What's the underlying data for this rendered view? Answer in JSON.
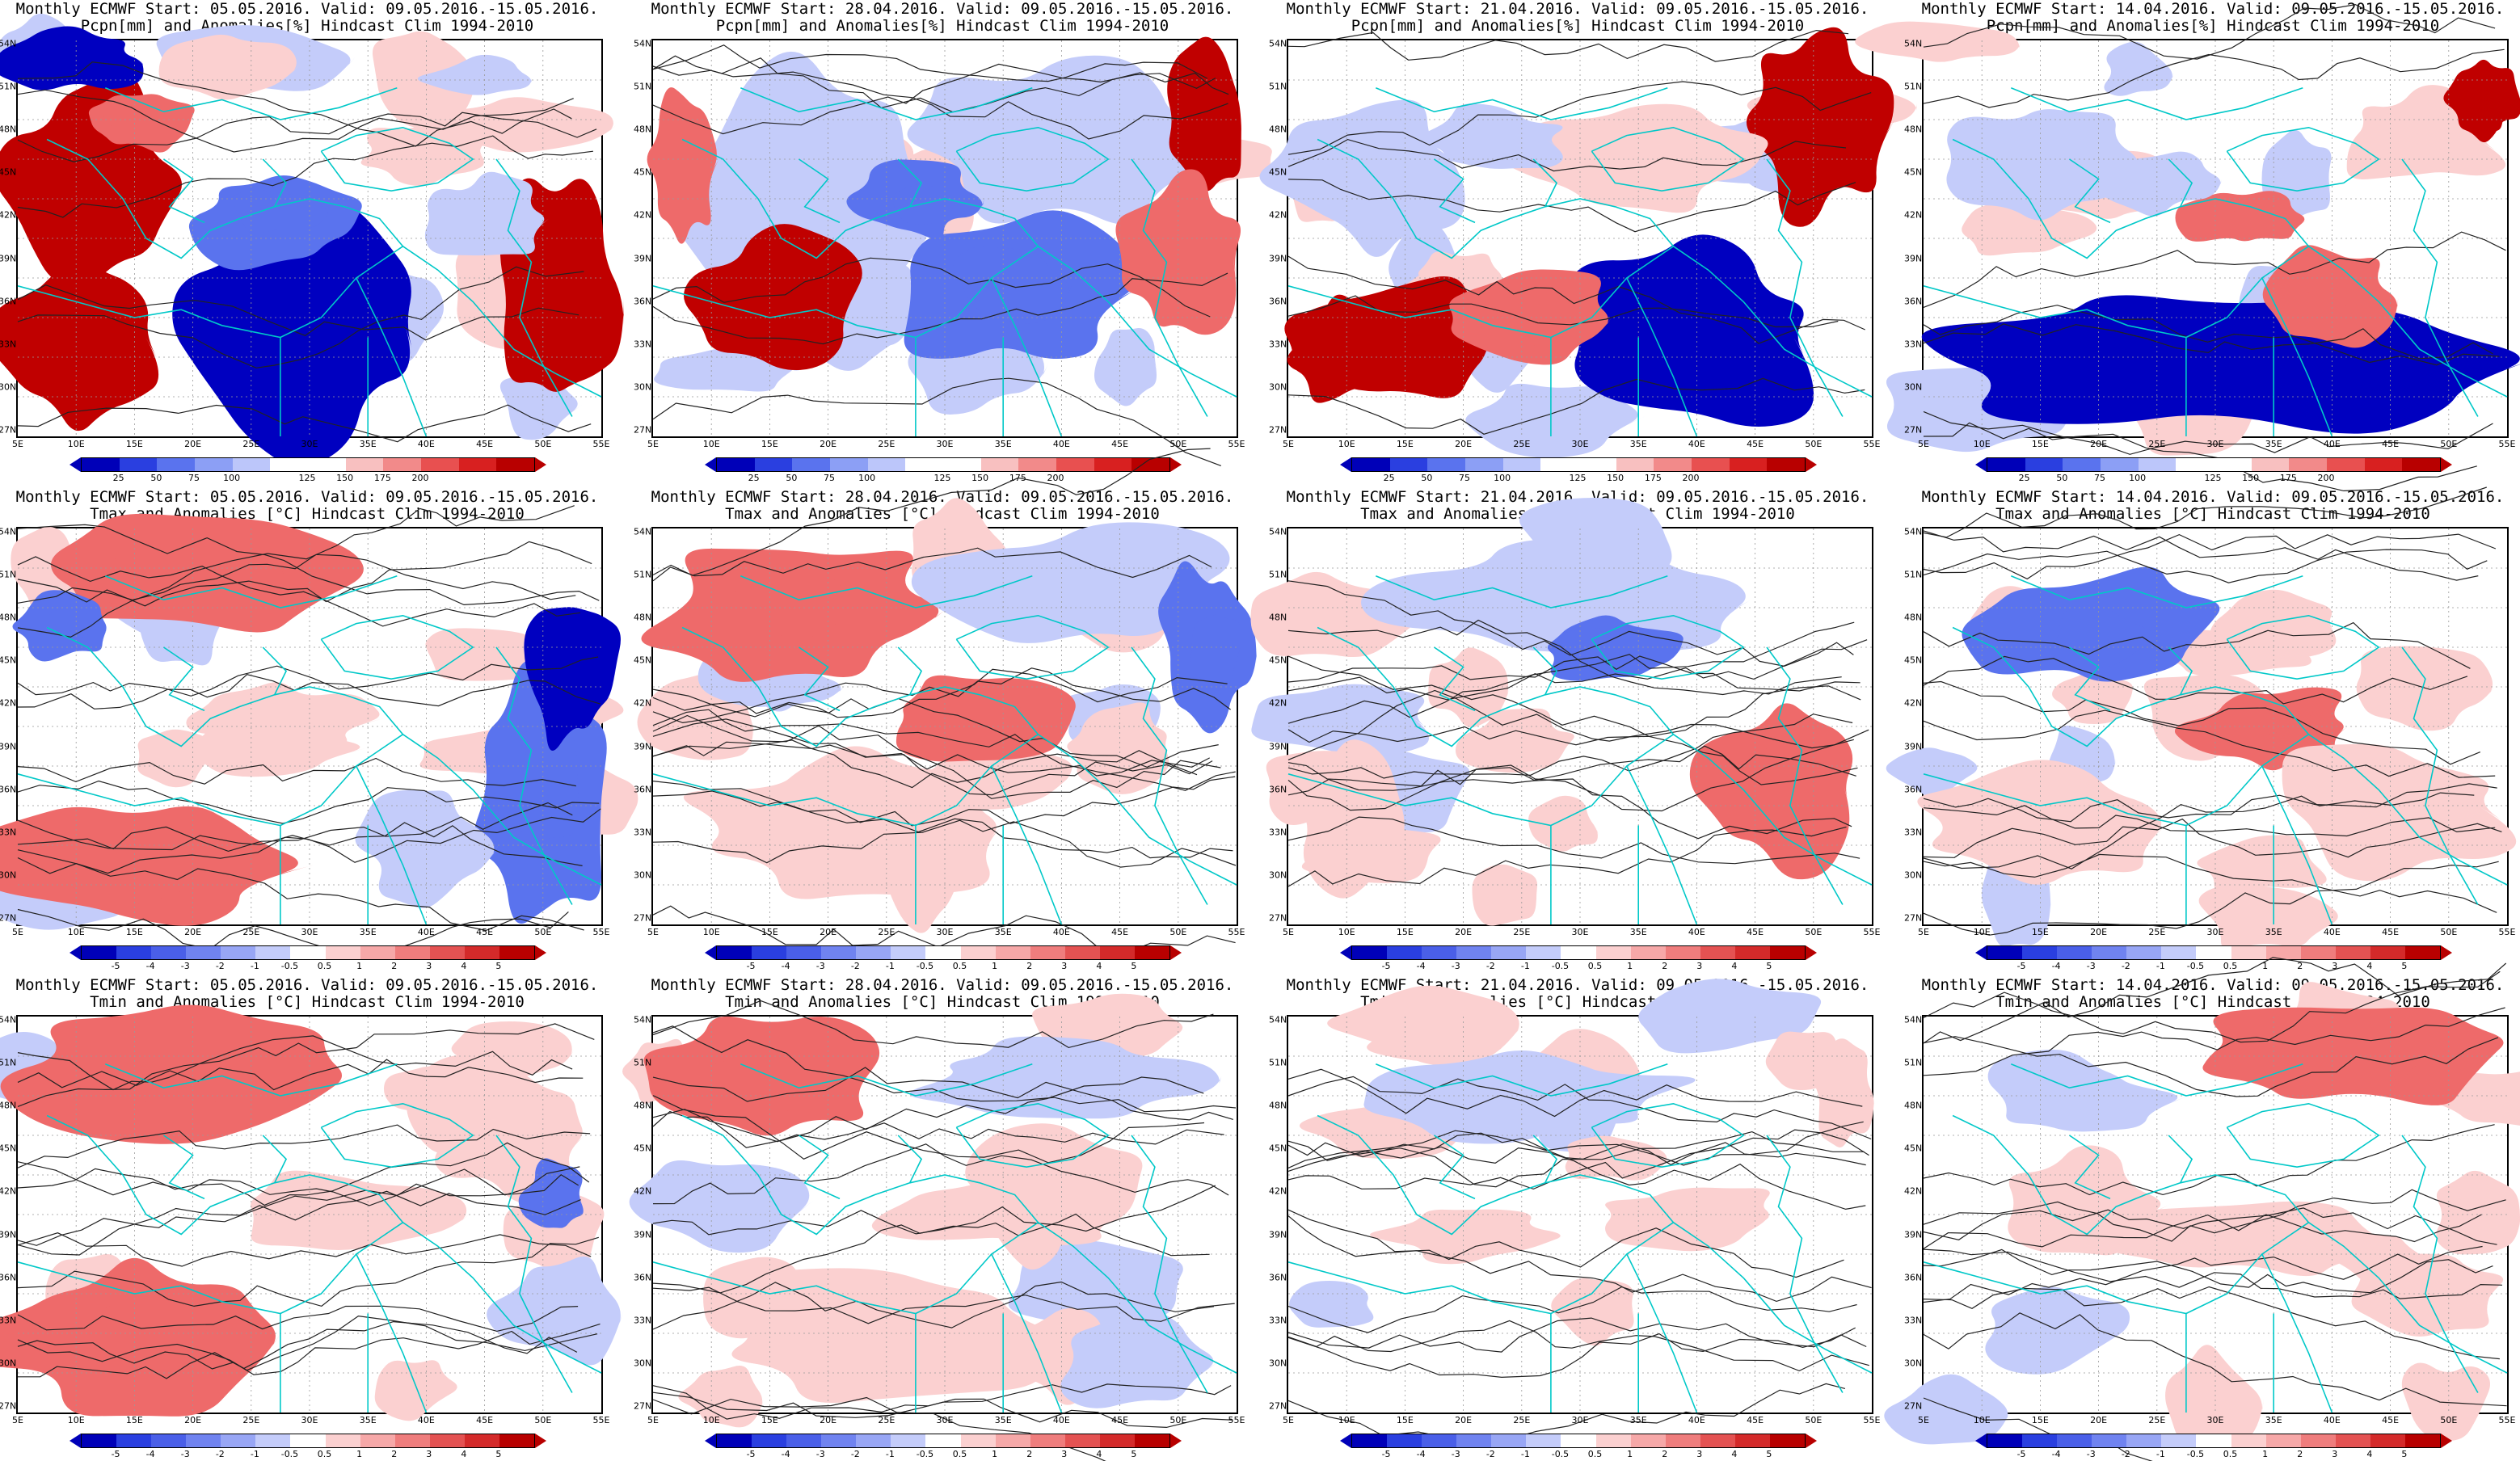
{
  "panels": [
    {
      "title1": "Monthly ECMWF Start: 05.05.2016. Valid: 09.05.2016.-15.05.2016.",
      "title2": "Pcpn[mm] and Anomalies[%] Hindcast Clim 1994-2010",
      "type": "pcpn",
      "row": 0,
      "col": 0
    },
    {
      "title1": "Monthly ECMWF Start: 28.04.2016. Valid: 09.05.2016.-15.05.2016.",
      "title2": "Pcpn[mm] and Anomalies[%] Hindcast Clim 1994-2010",
      "type": "pcpn",
      "row": 0,
      "col": 1
    },
    {
      "title1": "Monthly ECMWF Start: 21.04.2016. Valid: 09.05.2016.-15.05.2016.",
      "title2": "Pcpn[mm] and Anomalies[%] Hindcast Clim 1994-2010",
      "type": "pcpn",
      "row": 0,
      "col": 2
    },
    {
      "title1": "Monthly ECMWF Start: 14.04.2016. Valid: 09.05.2016.-15.05.2016.",
      "title2": "Pcpn[mm] and Anomalies[%] Hindcast Clim 1994-2010",
      "type": "pcpn",
      "row": 0,
      "col": 3
    },
    {
      "title1": "Monthly ECMWF Start: 05.05.2016. Valid: 09.05.2016.-15.05.2016.",
      "title2": "Tmax and Anomalies [°C] Hindcast Clim 1994-2010",
      "type": "temp",
      "row": 1,
      "col": 0
    },
    {
      "title1": "Monthly ECMWF Start: 28.04.2016. Valid: 09.05.2016.-15.05.2016.",
      "title2": "Tmax and Anomalies [°C] Hindcast Clim 1994-2010",
      "type": "temp",
      "row": 1,
      "col": 1
    },
    {
      "title1": "Monthly ECMWF Start: 21.04.2016. Valid: 09.05.2016.-15.05.2016.",
      "title2": "Tmax and Anomalies [°C] Hindcast Clim 1994-2010",
      "type": "temp",
      "row": 1,
      "col": 2
    },
    {
      "title1": "Monthly ECMWF Start: 14.04.2016. Valid: 09.05.2016.-15.05.2016.",
      "title2": "Tmax and Anomalies [°C] Hindcast Clim 1994-2010",
      "type": "temp",
      "row": 1,
      "col": 3
    },
    {
      "title1": "Monthly ECMWF Start: 05.05.2016. Valid: 09.05.2016.-15.05.2016.",
      "title2": "Tmin and Anomalies [°C] Hindcast Clim 1994-2010",
      "type": "temp",
      "row": 2,
      "col": 0
    },
    {
      "title1": "Monthly ECMWF Start: 28.04.2016. Valid: 09.05.2016.-15.05.2016.",
      "title2": "Tmin and Anomalies [°C] Hindcast Clim 1994-2010",
      "type": "temp",
      "row": 2,
      "col": 1
    },
    {
      "title1": "Monthly ECMWF Start: 21.04.2016. Valid: 09.05.2016.-15.05.2016.",
      "title2": "Tmin and Anomalies [°C] Hindcast Clim 1994-2010",
      "type": "temp",
      "row": 2,
      "col": 2
    },
    {
      "title1": "Monthly ECMWF Start: 14.04.2016. Valid: 09.05.2016.-15.05.2016.",
      "title2": "Tmin and Anomalies [°C] Hindcast Clim 1994-2010",
      "type": "temp",
      "row": 2,
      "col": 3
    }
  ],
  "lat_labels": [
    "54N",
    "51N",
    "48N",
    "45N",
    "42N",
    "39N",
    "36N",
    "33N",
    "30N",
    "27N"
  ],
  "lon_labels": [
    "5E",
    "10E",
    "15E",
    "20E",
    "25E",
    "30E",
    "35E",
    "40E",
    "45E",
    "50E",
    "55E"
  ],
  "pcpn_colorbar": {
    "labels": [
      "25",
      "50",
      "75",
      "100",
      "125",
      "150",
      "175",
      "200"
    ],
    "colors": [
      "#0000b8",
      "#2a3fe0",
      "#5a73ee",
      "#8c9ff5",
      "#bcc6fa",
      "#ffffff",
      "#ffffff",
      "#f8c0c0",
      "#f28a8a",
      "#e85050",
      "#d82020",
      "#b80000"
    ]
  },
  "temp_colorbar": {
    "labels": [
      "-5",
      "-4",
      "-3",
      "-2",
      "-1",
      "-0.5",
      "0.5",
      "1",
      "2",
      "3",
      "4",
      "5"
    ],
    "colors": [
      "#0000b8",
      "#2a3fe0",
      "#4a5fe8",
      "#7083f0",
      "#98a6f5",
      "#c4ccfa",
      "#ffffff",
      "#fbd0d0",
      "#f6a8a8",
      "#ef7d7d",
      "#e45252",
      "#d42a2a",
      "#b80000"
    ]
  },
  "colors": {
    "coast": "#00c8c8",
    "contour": "#222222",
    "blue_dark": "#0000c0",
    "blue_mid": "#5a73ee",
    "blue_light": "#c4ccfa",
    "red_dark": "#c00000",
    "red_mid": "#ee6a6a",
    "red_light": "#fbd0d0"
  }
}
